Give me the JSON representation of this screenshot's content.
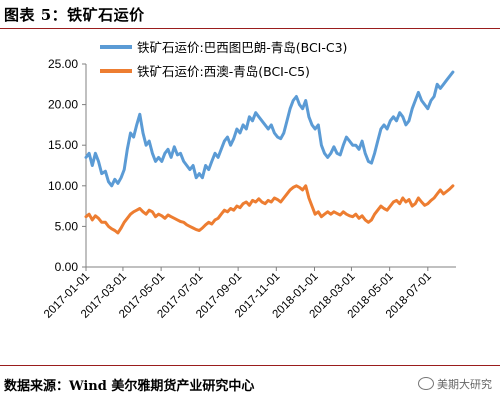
{
  "figure": {
    "caption": "图表 5：铁矿石运价",
    "source": "数据来源：Wind  美尔雅期货产业研究中心",
    "watermark": "美期大研究",
    "watermark_icon": "chat-bubble-icon"
  },
  "chart_data": {
    "type": "line",
    "title": "",
    "xlabel": "",
    "ylabel": "",
    "ylim": [
      0,
      25
    ],
    "yticks": [
      "0.00",
      "5.00",
      "10.00",
      "15.00",
      "20.00",
      "25.00"
    ],
    "xticks": [
      "2017-01-01",
      "2017-03-01",
      "2017-05-01",
      "2017-07-01",
      "2017-09-01",
      "2017-11-01",
      "2018-01-01",
      "2018-03-01",
      "2018-05-01",
      "2018-07-01"
    ],
    "grid": false,
    "legend": "top-left",
    "series": [
      {
        "name": "铁矿石运价:巴西图巴朗-青岛(BCI-C3)",
        "color": "#5B9BD5",
        "points": [
          [
            "2017-01-01",
            13.5
          ],
          [
            "2017-01-06",
            14.0
          ],
          [
            "2017-01-11",
            12.5
          ],
          [
            "2017-01-16",
            14.0
          ],
          [
            "2017-01-21",
            13.0
          ],
          [
            "2017-01-26",
            11.5
          ],
          [
            "2017-02-01",
            11.8
          ],
          [
            "2017-02-06",
            10.5
          ],
          [
            "2017-02-11",
            10.0
          ],
          [
            "2017-02-16",
            10.8
          ],
          [
            "2017-02-21",
            10.3
          ],
          [
            "2017-02-26",
            11.0
          ],
          [
            "2017-03-03",
            12.0
          ],
          [
            "2017-03-08",
            14.5
          ],
          [
            "2017-03-13",
            16.5
          ],
          [
            "2017-03-18",
            16.0
          ],
          [
            "2017-03-23",
            17.5
          ],
          [
            "2017-03-28",
            18.8
          ],
          [
            "2017-04-02",
            16.5
          ],
          [
            "2017-04-07",
            15.0
          ],
          [
            "2017-04-12",
            15.5
          ],
          [
            "2017-04-17",
            14.0
          ],
          [
            "2017-04-22",
            13.0
          ],
          [
            "2017-04-27",
            13.5
          ],
          [
            "2017-05-02",
            13.0
          ],
          [
            "2017-05-07",
            14.0
          ],
          [
            "2017-05-12",
            14.5
          ],
          [
            "2017-05-17",
            13.5
          ],
          [
            "2017-05-22",
            14.8
          ],
          [
            "2017-05-27",
            13.8
          ],
          [
            "2017-06-01",
            14.0
          ],
          [
            "2017-06-06",
            13.0
          ],
          [
            "2017-06-11",
            12.5
          ],
          [
            "2017-06-16",
            12.0
          ],
          [
            "2017-06-21",
            12.5
          ],
          [
            "2017-06-26",
            11.0
          ],
          [
            "2017-07-01",
            11.5
          ],
          [
            "2017-07-06",
            11.0
          ],
          [
            "2017-07-11",
            12.5
          ],
          [
            "2017-07-16",
            12.0
          ],
          [
            "2017-07-21",
            13.0
          ],
          [
            "2017-07-26",
            14.0
          ],
          [
            "2017-07-31",
            13.5
          ],
          [
            "2017-08-05",
            14.5
          ],
          [
            "2017-08-10",
            15.5
          ],
          [
            "2017-08-15",
            16.0
          ],
          [
            "2017-08-20",
            15.0
          ],
          [
            "2017-08-25",
            15.8
          ],
          [
            "2017-08-30",
            17.0
          ],
          [
            "2017-09-04",
            16.5
          ],
          [
            "2017-09-09",
            17.5
          ],
          [
            "2017-09-14",
            17.0
          ],
          [
            "2017-09-19",
            18.5
          ],
          [
            "2017-09-24",
            18.0
          ],
          [
            "2017-09-29",
            19.0
          ],
          [
            "2017-10-04",
            18.5
          ],
          [
            "2017-10-09",
            18.0
          ],
          [
            "2017-10-14",
            17.5
          ],
          [
            "2017-10-19",
            17.0
          ],
          [
            "2017-10-24",
            17.5
          ],
          [
            "2017-10-29",
            16.5
          ],
          [
            "2017-11-03",
            16.0
          ],
          [
            "2017-11-08",
            15.8
          ],
          [
            "2017-11-13",
            16.5
          ],
          [
            "2017-11-18",
            18.0
          ],
          [
            "2017-11-23",
            19.5
          ],
          [
            "2017-11-28",
            20.5
          ],
          [
            "2017-12-03",
            21.0
          ],
          [
            "2017-12-08",
            20.0
          ],
          [
            "2017-12-13",
            19.5
          ],
          [
            "2017-12-18",
            20.5
          ],
          [
            "2017-12-23",
            18.5
          ],
          [
            "2017-12-28",
            17.5
          ],
          [
            "2018-01-02",
            17.0
          ],
          [
            "2018-01-07",
            17.5
          ],
          [
            "2018-01-12",
            15.0
          ],
          [
            "2018-01-17",
            14.0
          ],
          [
            "2018-01-22",
            13.5
          ],
          [
            "2018-01-27",
            14.0
          ],
          [
            "2018-02-01",
            14.8
          ],
          [
            "2018-02-06",
            14.0
          ],
          [
            "2018-02-11",
            13.8
          ],
          [
            "2018-02-16",
            15.0
          ],
          [
            "2018-02-21",
            16.0
          ],
          [
            "2018-02-26",
            15.5
          ],
          [
            "2018-03-03",
            15.0
          ],
          [
            "2018-03-08",
            15.0
          ],
          [
            "2018-03-13",
            14.5
          ],
          [
            "2018-03-18",
            15.5
          ],
          [
            "2018-03-23",
            14.0
          ],
          [
            "2018-03-28",
            13.0
          ],
          [
            "2018-04-02",
            12.8
          ],
          [
            "2018-04-07",
            14.0
          ],
          [
            "2018-04-12",
            15.5
          ],
          [
            "2018-04-17",
            17.0
          ],
          [
            "2018-04-22",
            17.5
          ],
          [
            "2018-04-27",
            17.0
          ],
          [
            "2018-05-02",
            18.0
          ],
          [
            "2018-05-07",
            18.5
          ],
          [
            "2018-05-12",
            18.0
          ],
          [
            "2018-05-17",
            19.0
          ],
          [
            "2018-05-22",
            18.5
          ],
          [
            "2018-05-27",
            17.5
          ],
          [
            "2018-06-01",
            18.0
          ],
          [
            "2018-06-06",
            19.5
          ],
          [
            "2018-06-11",
            20.5
          ],
          [
            "2018-06-16",
            21.5
          ],
          [
            "2018-06-21",
            20.5
          ],
          [
            "2018-06-26",
            20.0
          ],
          [
            "2018-07-01",
            19.5
          ],
          [
            "2018-07-06",
            20.5
          ],
          [
            "2018-07-11",
            21.0
          ],
          [
            "2018-07-16",
            22.5
          ],
          [
            "2018-07-21",
            22.0
          ],
          [
            "2018-07-26",
            22.5
          ],
          [
            "2018-07-31",
            23.0
          ],
          [
            "2018-08-05",
            23.5
          ],
          [
            "2018-08-10",
            24.0
          ]
        ]
      },
      {
        "name": "铁矿石运价:西澳-青岛(BCI-C5)",
        "color": "#ED7D31",
        "points": [
          [
            "2017-01-01",
            6.2
          ],
          [
            "2017-01-06",
            6.5
          ],
          [
            "2017-01-11",
            5.8
          ],
          [
            "2017-01-16",
            6.3
          ],
          [
            "2017-01-21",
            6.0
          ],
          [
            "2017-01-26",
            5.5
          ],
          [
            "2017-02-01",
            5.5
          ],
          [
            "2017-02-06",
            5.0
          ],
          [
            "2017-02-11",
            4.7
          ],
          [
            "2017-02-16",
            4.5
          ],
          [
            "2017-02-21",
            4.2
          ],
          [
            "2017-02-26",
            4.8
          ],
          [
            "2017-03-03",
            5.5
          ],
          [
            "2017-03-08",
            6.0
          ],
          [
            "2017-03-13",
            6.5
          ],
          [
            "2017-03-18",
            6.8
          ],
          [
            "2017-03-23",
            7.0
          ],
          [
            "2017-03-28",
            7.2
          ],
          [
            "2017-04-02",
            6.8
          ],
          [
            "2017-04-07",
            6.5
          ],
          [
            "2017-04-12",
            7.0
          ],
          [
            "2017-04-17",
            6.8
          ],
          [
            "2017-04-22",
            6.2
          ],
          [
            "2017-04-27",
            6.5
          ],
          [
            "2017-05-02",
            6.3
          ],
          [
            "2017-05-07",
            6.0
          ],
          [
            "2017-05-12",
            6.4
          ],
          [
            "2017-05-17",
            6.2
          ],
          [
            "2017-05-22",
            6.0
          ],
          [
            "2017-05-27",
            5.8
          ],
          [
            "2017-06-01",
            5.6
          ],
          [
            "2017-06-06",
            5.5
          ],
          [
            "2017-06-11",
            5.2
          ],
          [
            "2017-06-16",
            5.0
          ],
          [
            "2017-06-21",
            4.8
          ],
          [
            "2017-06-26",
            4.6
          ],
          [
            "2017-07-01",
            4.5
          ],
          [
            "2017-07-06",
            4.8
          ],
          [
            "2017-07-11",
            5.2
          ],
          [
            "2017-07-16",
            5.5
          ],
          [
            "2017-07-21",
            5.3
          ],
          [
            "2017-07-26",
            5.8
          ],
          [
            "2017-07-31",
            6.0
          ],
          [
            "2017-08-05",
            6.5
          ],
          [
            "2017-08-10",
            7.0
          ],
          [
            "2017-08-15",
            6.8
          ],
          [
            "2017-08-20",
            7.2
          ],
          [
            "2017-08-25",
            7.0
          ],
          [
            "2017-08-30",
            7.5
          ],
          [
            "2017-09-04",
            7.3
          ],
          [
            "2017-09-09",
            7.8
          ],
          [
            "2017-09-14",
            8.0
          ],
          [
            "2017-09-19",
            7.6
          ],
          [
            "2017-09-24",
            8.2
          ],
          [
            "2017-09-29",
            8.0
          ],
          [
            "2017-10-04",
            8.4
          ],
          [
            "2017-10-09",
            8.0
          ],
          [
            "2017-10-14",
            7.8
          ],
          [
            "2017-10-19",
            8.2
          ],
          [
            "2017-10-24",
            8.0
          ],
          [
            "2017-10-29",
            8.5
          ],
          [
            "2017-11-03",
            8.3
          ],
          [
            "2017-11-08",
            8.0
          ],
          [
            "2017-11-13",
            8.5
          ],
          [
            "2017-11-18",
            9.0
          ],
          [
            "2017-11-23",
            9.5
          ],
          [
            "2017-11-28",
            9.8
          ],
          [
            "2017-12-03",
            10.0
          ],
          [
            "2017-12-08",
            9.8
          ],
          [
            "2017-12-13",
            9.5
          ],
          [
            "2017-12-18",
            10.0
          ],
          [
            "2017-12-23",
            8.5
          ],
          [
            "2017-12-28",
            7.5
          ],
          [
            "2018-01-02",
            6.5
          ],
          [
            "2018-01-07",
            6.8
          ],
          [
            "2018-01-12",
            6.2
          ],
          [
            "2018-01-17",
            6.5
          ],
          [
            "2018-01-22",
            6.8
          ],
          [
            "2018-01-27",
            6.5
          ],
          [
            "2018-02-01",
            6.8
          ],
          [
            "2018-02-06",
            6.6
          ],
          [
            "2018-02-11",
            6.4
          ],
          [
            "2018-02-16",
            6.8
          ],
          [
            "2018-02-21",
            6.5
          ],
          [
            "2018-02-26",
            6.3
          ],
          [
            "2018-03-03",
            6.2
          ],
          [
            "2018-03-08",
            6.5
          ],
          [
            "2018-03-13",
            6.0
          ],
          [
            "2018-03-18",
            6.3
          ],
          [
            "2018-03-23",
            5.8
          ],
          [
            "2018-03-28",
            5.5
          ],
          [
            "2018-04-02",
            5.8
          ],
          [
            "2018-04-07",
            6.5
          ],
          [
            "2018-04-12",
            7.0
          ],
          [
            "2018-04-17",
            7.5
          ],
          [
            "2018-04-22",
            7.2
          ],
          [
            "2018-04-27",
            7.0
          ],
          [
            "2018-05-02",
            7.5
          ],
          [
            "2018-05-07",
            8.0
          ],
          [
            "2018-05-12",
            8.2
          ],
          [
            "2018-05-17",
            7.8
          ],
          [
            "2018-05-22",
            8.5
          ],
          [
            "2018-05-27",
            8.0
          ],
          [
            "2018-06-01",
            8.3
          ],
          [
            "2018-06-06",
            7.5
          ],
          [
            "2018-06-11",
            7.8
          ],
          [
            "2018-06-16",
            8.5
          ],
          [
            "2018-06-21",
            8.0
          ],
          [
            "2018-06-26",
            7.6
          ],
          [
            "2018-07-01",
            7.8
          ],
          [
            "2018-07-06",
            8.2
          ],
          [
            "2018-07-11",
            8.5
          ],
          [
            "2018-07-16",
            9.0
          ],
          [
            "2018-07-21",
            9.5
          ],
          [
            "2018-07-26",
            9.0
          ],
          [
            "2018-07-31",
            9.3
          ],
          [
            "2018-08-05",
            9.6
          ],
          [
            "2018-08-10",
            10.0
          ]
        ]
      }
    ]
  }
}
